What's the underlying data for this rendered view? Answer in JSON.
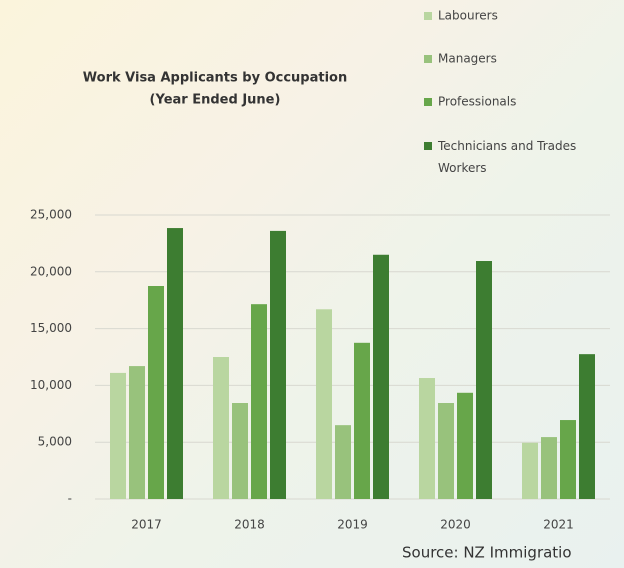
{
  "chart_data": {
    "type": "bar",
    "title": "Work Visa Applicants by Occupation",
    "subtitle": "(Year Ended June)",
    "source": "Source: NZ Immigratio",
    "categories": [
      "2017",
      "2018",
      "2019",
      "2020",
      "2021"
    ],
    "series": [
      {
        "name": "Labourers",
        "color": "#b9d6a0",
        "values": [
          11100,
          12500,
          16700,
          10650,
          4950
        ]
      },
      {
        "name": "Managers",
        "color": "#98c27c",
        "values": [
          11700,
          8450,
          6500,
          8450,
          5450
        ]
      },
      {
        "name": "Professionals",
        "color": "#67a64a",
        "values": [
          18750,
          17150,
          13750,
          9350,
          6950
        ]
      },
      {
        "name": "Technicians and Trades Workers",
        "color": "#3d7d31",
        "values": [
          23850,
          23600,
          21500,
          20950,
          12750
        ]
      }
    ],
    "ylim": [
      0,
      25000
    ],
    "yticks": [
      {
        "value": 0,
        "label": "-"
      },
      {
        "value": 5000,
        "label": "5,000"
      },
      {
        "value": 10000,
        "label": "10,000"
      },
      {
        "value": 15000,
        "label": "15,000"
      },
      {
        "value": 20000,
        "label": "20,000"
      },
      {
        "value": 25000,
        "label": "25,000"
      }
    ],
    "grid": true
  }
}
